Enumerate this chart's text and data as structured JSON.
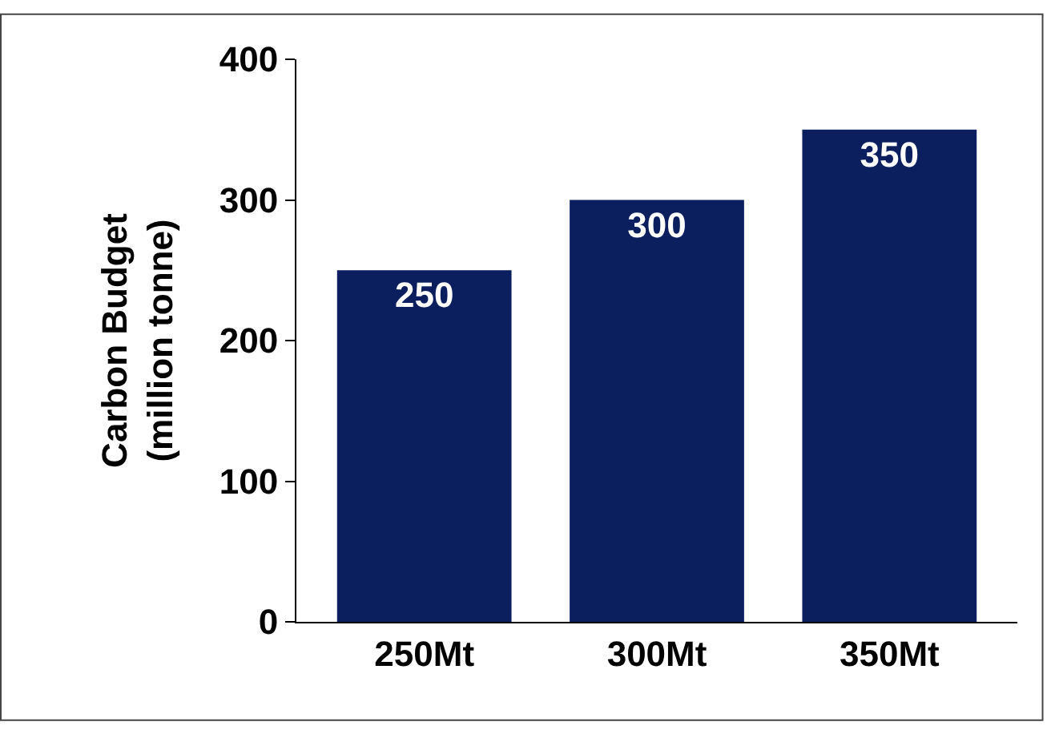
{
  "chart_data": {
    "type": "bar",
    "ylabel": "Carbon Budget\n(million tonne)",
    "categories": [
      "250Mt",
      "300Mt",
      "350Mt"
    ],
    "values": [
      250,
      300,
      350
    ],
    "color": "#0b1f5e",
    "ylim": [
      0,
      400
    ],
    "yticks": [
      0,
      100,
      200,
      300,
      400
    ],
    "data_labels": true
  }
}
